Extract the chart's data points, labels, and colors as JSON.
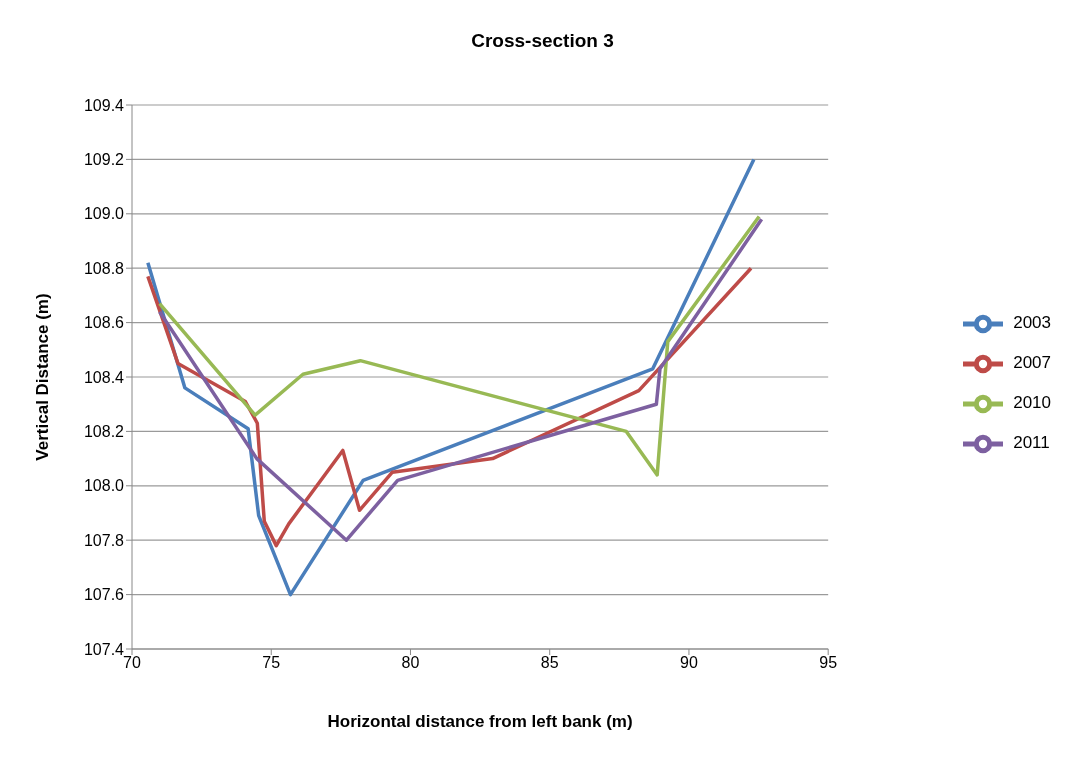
{
  "chart_data": {
    "type": "line",
    "title": "Cross-section 3",
    "xlabel": "Horizontal distance from left bank (m)",
    "ylabel": "Vertical Distance (m)",
    "xlim": [
      70,
      95
    ],
    "xticks": [
      70,
      75,
      80,
      85,
      90,
      95
    ],
    "ylim": [
      107.4,
      109.4
    ],
    "yticks": [
      107.4,
      107.6,
      107.8,
      {
        "value": 108,
        "label": "108.0"
      },
      108.2,
      108.4,
      108.6,
      108.8,
      {
        "value": 109,
        "label": "109.0"
      },
      109.2,
      109.4
    ],
    "grid": "y",
    "legend": "right",
    "marker": "none",
    "line_style": "solid",
    "series": [
      {
        "name": "2003",
        "color": "#4a7ebb",
        "x": [
          70.57,
          71.9,
          74.17,
          74.55,
          75.69,
          78.3,
          88.7,
          92.33
        ],
        "values": [
          108.82,
          108.36,
          108.21,
          107.89,
          107.6,
          108.02,
          108.43,
          109.2
        ]
      },
      {
        "name": "2007",
        "color": "#be4b48",
        "x": [
          70.57,
          71.65,
          74.07,
          74.5,
          74.75,
          75.18,
          75.63,
          77.57,
          78.17,
          79.35,
          82.95,
          88.2,
          92.23
        ],
        "values": [
          108.77,
          108.45,
          108.31,
          108.23,
          107.87,
          107.78,
          107.86,
          108.13,
          107.91,
          108.05,
          108.1,
          108.35,
          108.8
        ]
      },
      {
        "name": "2010",
        "color": "#98b954",
        "x": [
          70.99,
          74.42,
          76.14,
          78.2,
          87.75,
          88.86,
          89.24,
          92.52
        ],
        "values": [
          108.67,
          108.26,
          108.41,
          108.46,
          108.2,
          108.04,
          108.53,
          108.99
        ]
      },
      {
        "name": "2011",
        "color": "#7d60a0",
        "x": [
          70.99,
          74.48,
          77.7,
          79.54,
          88.83,
          88.96,
          92.61
        ],
        "values": [
          108.64,
          108.1,
          107.8,
          108.02,
          108.3,
          108.43,
          108.98
        ]
      }
    ]
  }
}
